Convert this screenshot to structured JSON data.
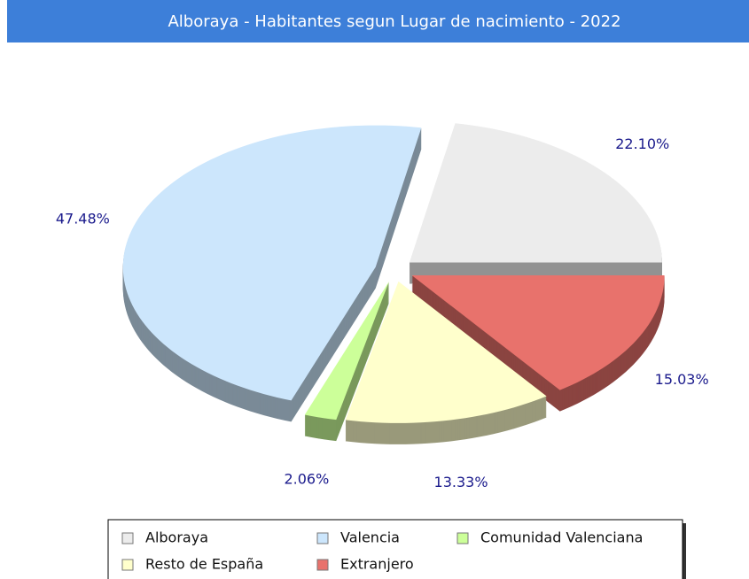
{
  "chart_data": {
    "type": "pie",
    "title": "Alboraya - Habitantes segun Lugar de nacimiento - 2022",
    "series": [
      {
        "name": "Alboraya",
        "color": "#ececec",
        "values": [
          22.1
        ],
        "value_labels": [
          "22.10%"
        ]
      },
      {
        "name": "Valencia",
        "color": "#cce6fc",
        "values": [
          47.48
        ],
        "value_labels": [
          "47.48%"
        ]
      },
      {
        "name": "Comunidad Valenciana",
        "color": "#ccff99",
        "values": [
          2.06
        ],
        "value_labels": [
          "2.06%"
        ]
      },
      {
        "name": "Resto de España",
        "color": "#ffffcc",
        "values": [
          13.33
        ],
        "value_labels": [
          "13.33%"
        ]
      },
      {
        "name": "Extranjero",
        "color": "#e8726c",
        "values": [
          15.03
        ],
        "value_labels": [
          "15.03%"
        ]
      }
    ]
  }
}
